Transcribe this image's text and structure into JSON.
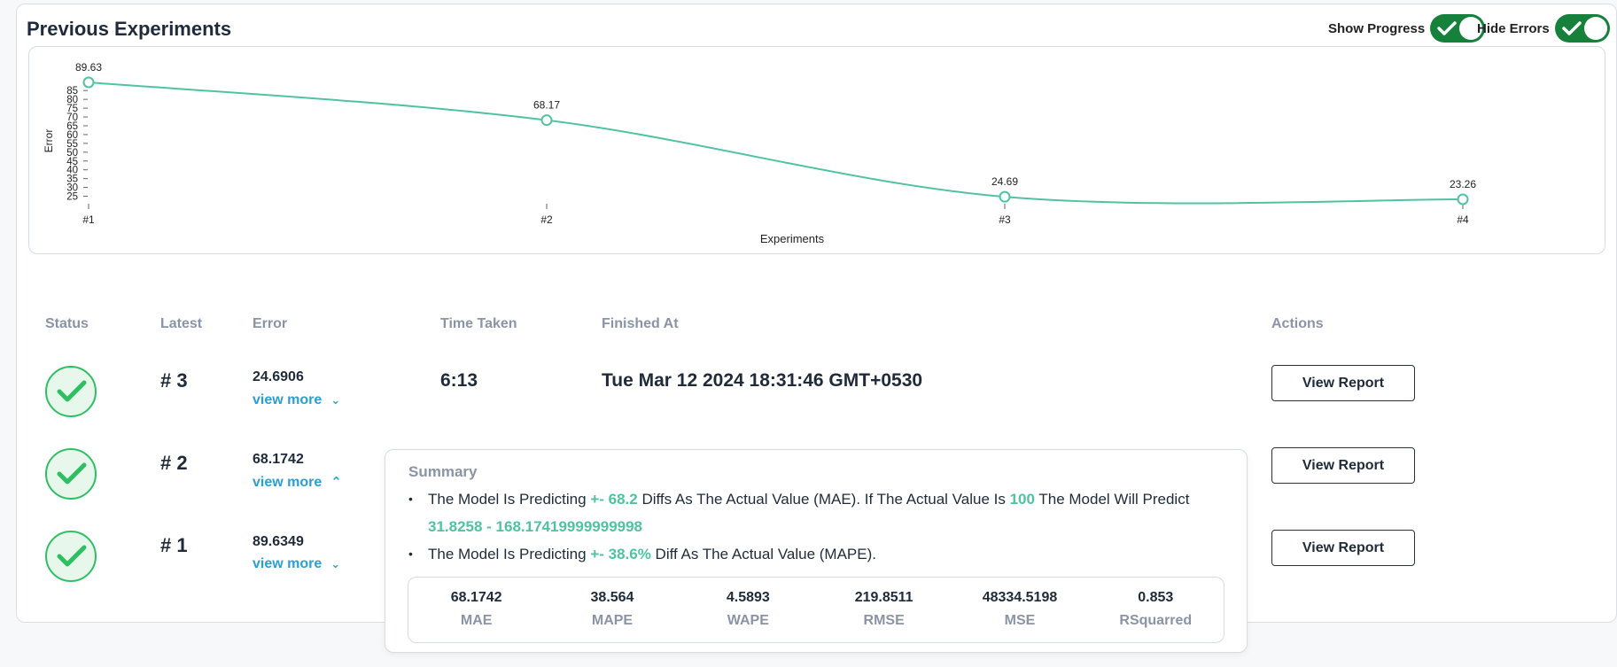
{
  "section_title": "Previous Experiments",
  "toggles": [
    {
      "label": "Show Progress",
      "on": true
    },
    {
      "label": "Hide Errors",
      "on": true
    }
  ],
  "colors": {
    "accent": "#4fc3a1",
    "toggle_on": "#16813b",
    "link": "#2a9fd6",
    "success": "#2fbf63"
  },
  "chart_data": {
    "type": "line",
    "categories": [
      "#1",
      "#2",
      "#3",
      "#4"
    ],
    "series": [
      {
        "values": [
          89.63,
          68.17,
          24.69,
          23.26
        ]
      }
    ],
    "data_labels": [
      "89.63",
      "68.17",
      "24.69",
      "23.26"
    ],
    "xlabel": "Experiments",
    "ylabel": "Error",
    "yticks": [
      25,
      30,
      35,
      40,
      45,
      50,
      55,
      60,
      65,
      70,
      75,
      80,
      85
    ],
    "ylim": [
      23.26,
      89.63
    ],
    "grid": false
  },
  "table": {
    "headers": {
      "status": "Status",
      "latest": "Latest",
      "error": "Error",
      "time": "Time Taken",
      "finished": "Finished At",
      "actions": "Actions"
    },
    "rows": [
      {
        "latest": "# 3",
        "error": "24.6906",
        "view_more": "view more",
        "time": "6:13",
        "finished": "Tue Mar 12 2024 18:31:46 GMT+0530",
        "action": "View Report",
        "expanded": false
      },
      {
        "latest": "# 2",
        "error": "68.1742",
        "view_more": "view more",
        "time": "",
        "finished": "",
        "action": "View Report",
        "expanded": true
      },
      {
        "latest": "# 1",
        "error": "89.6349",
        "view_more": "view more",
        "time": "",
        "finished": "",
        "action": "View Report",
        "expanded": false
      }
    ]
  },
  "summary": {
    "title": "Summary",
    "line1": {
      "p1": "The Model Is Predicting ",
      "h1": "+- 68.2",
      "p2": " Diffs As The Actual Value (MAE). If The Actual Value Is ",
      "h2": "100",
      "p3": " The Model Will Predict ",
      "h3": "31.8258 - 168.17419999999998"
    },
    "line2": {
      "p1": "The Model Is Predicting ",
      "h1": "+- 38.6%",
      "p2": " Diff As The Actual Value (MAPE)."
    },
    "metrics": [
      {
        "value": "68.1742",
        "label": "MAE"
      },
      {
        "value": "38.564",
        "label": "MAPE"
      },
      {
        "value": "4.5893",
        "label": "WAPE"
      },
      {
        "value": "219.8511",
        "label": "RMSE"
      },
      {
        "value": "48334.5198",
        "label": "MSE"
      },
      {
        "value": "0.853",
        "label": "RSquarred"
      }
    ]
  }
}
